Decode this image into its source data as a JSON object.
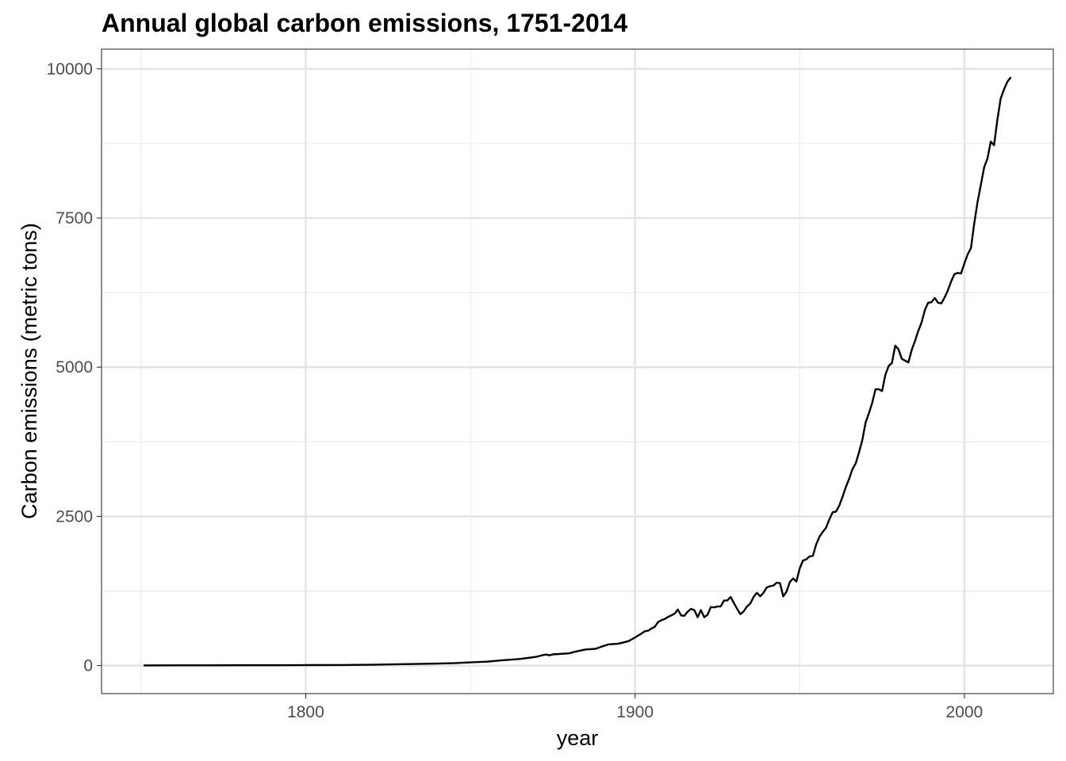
{
  "chart_data": {
    "type": "line",
    "title": "Annual global carbon emissions, 1751-2014",
    "xlabel": "year",
    "ylabel": "Carbon emissions (metric tons)",
    "xlim": [
      1738,
      2027
    ],
    "ylim": [
      -470,
      10330
    ],
    "x_ticks": [
      1800,
      1900,
      2000
    ],
    "x_minor_ticks": [
      1750,
      1850,
      1950
    ],
    "y_ticks": [
      0,
      2500,
      5000,
      7500,
      10000
    ],
    "y_minor_ticks": [
      1250,
      3750,
      6250,
      8750
    ],
    "grid": true,
    "line_color": "#000000",
    "series": [
      {
        "points": [
          [
            1751,
            3
          ],
          [
            1760,
            4
          ],
          [
            1770,
            4
          ],
          [
            1780,
            5
          ],
          [
            1790,
            6
          ],
          [
            1800,
            8
          ],
          [
            1810,
            10
          ],
          [
            1820,
            14
          ],
          [
            1830,
            24
          ],
          [
            1840,
            33
          ],
          [
            1845,
            40
          ],
          [
            1850,
            54
          ],
          [
            1855,
            65
          ],
          [
            1860,
            91
          ],
          [
            1865,
            110
          ],
          [
            1870,
            147
          ],
          [
            1872,
            175
          ],
          [
            1873,
            185
          ],
          [
            1874,
            172
          ],
          [
            1875,
            188
          ],
          [
            1880,
            205
          ],
          [
            1882,
            235
          ],
          [
            1885,
            270
          ],
          [
            1888,
            280
          ],
          [
            1890,
            320
          ],
          [
            1892,
            355
          ],
          [
            1895,
            368
          ],
          [
            1898,
            410
          ],
          [
            1900,
            470
          ],
          [
            1902,
            540
          ],
          [
            1903,
            575
          ],
          [
            1904,
            585
          ],
          [
            1905,
            620
          ],
          [
            1906,
            650
          ],
          [
            1907,
            730
          ],
          [
            1908,
            760
          ],
          [
            1909,
            780
          ],
          [
            1910,
            815
          ],
          [
            1911,
            840
          ],
          [
            1912,
            870
          ],
          [
            1913,
            940
          ],
          [
            1914,
            840
          ],
          [
            1915,
            835
          ],
          [
            1916,
            905
          ],
          [
            1917,
            950
          ],
          [
            1918,
            930
          ],
          [
            1919,
            810
          ],
          [
            1920,
            930
          ],
          [
            1921,
            810
          ],
          [
            1922,
            850
          ],
          [
            1923,
            980
          ],
          [
            1924,
            975
          ],
          [
            1925,
            990
          ],
          [
            1926,
            990
          ],
          [
            1927,
            1090
          ],
          [
            1928,
            1090
          ],
          [
            1929,
            1150
          ],
          [
            1930,
            1050
          ],
          [
            1931,
            950
          ],
          [
            1932,
            860
          ],
          [
            1933,
            910
          ],
          [
            1934,
            990
          ],
          [
            1935,
            1040
          ],
          [
            1936,
            1150
          ],
          [
            1937,
            1220
          ],
          [
            1938,
            1160
          ],
          [
            1939,
            1220
          ],
          [
            1940,
            1310
          ],
          [
            1941,
            1330
          ],
          [
            1942,
            1340
          ],
          [
            1943,
            1390
          ],
          [
            1944,
            1380
          ],
          [
            1945,
            1160
          ],
          [
            1946,
            1240
          ],
          [
            1947,
            1400
          ],
          [
            1948,
            1460
          ],
          [
            1949,
            1410
          ],
          [
            1950,
            1630
          ],
          [
            1951,
            1760
          ],
          [
            1952,
            1780
          ],
          [
            1953,
            1830
          ],
          [
            1954,
            1840
          ],
          [
            1955,
            2030
          ],
          [
            1956,
            2160
          ],
          [
            1957,
            2240
          ],
          [
            1958,
            2310
          ],
          [
            1959,
            2450
          ],
          [
            1960,
            2570
          ],
          [
            1961,
            2580
          ],
          [
            1962,
            2680
          ],
          [
            1963,
            2830
          ],
          [
            1964,
            2990
          ],
          [
            1965,
            3130
          ],
          [
            1966,
            3290
          ],
          [
            1967,
            3390
          ],
          [
            1968,
            3570
          ],
          [
            1969,
            3780
          ],
          [
            1970,
            4070
          ],
          [
            1971,
            4230
          ],
          [
            1972,
            4400
          ],
          [
            1973,
            4630
          ],
          [
            1974,
            4630
          ],
          [
            1975,
            4600
          ],
          [
            1976,
            4870
          ],
          [
            1977,
            5020
          ],
          [
            1978,
            5070
          ],
          [
            1979,
            5360
          ],
          [
            1980,
            5300
          ],
          [
            1981,
            5140
          ],
          [
            1982,
            5110
          ],
          [
            1983,
            5080
          ],
          [
            1984,
            5290
          ],
          [
            1985,
            5440
          ],
          [
            1986,
            5610
          ],
          [
            1987,
            5750
          ],
          [
            1988,
            5960
          ],
          [
            1989,
            6080
          ],
          [
            1990,
            6090
          ],
          [
            1991,
            6160
          ],
          [
            1992,
            6080
          ],
          [
            1993,
            6070
          ],
          [
            1994,
            6170
          ],
          [
            1995,
            6290
          ],
          [
            1996,
            6440
          ],
          [
            1997,
            6560
          ],
          [
            1998,
            6580
          ],
          [
            1999,
            6570
          ],
          [
            2000,
            6740
          ],
          [
            2001,
            6890
          ],
          [
            2002,
            7000
          ],
          [
            2003,
            7410
          ],
          [
            2004,
            7770
          ],
          [
            2005,
            8060
          ],
          [
            2006,
            8350
          ],
          [
            2007,
            8500
          ],
          [
            2008,
            8780
          ],
          [
            2009,
            8720
          ],
          [
            2010,
            9140
          ],
          [
            2011,
            9500
          ],
          [
            2012,
            9650
          ],
          [
            2013,
            9780
          ],
          [
            2014,
            9850
          ]
        ]
      }
    ]
  }
}
